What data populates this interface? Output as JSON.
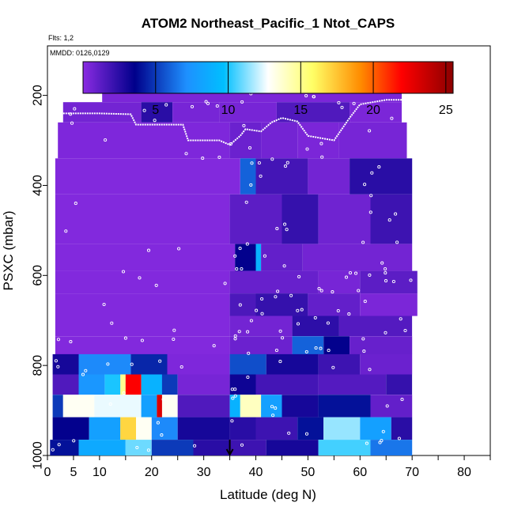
{
  "chart_data": {
    "type": "heatmap",
    "title": "ATOM2 Northeast_Pacific_1 Ntot_CAPS",
    "subtitle_flights": "Flts: 1,2",
    "subtitle_dates": "MMDD: 0126,0129",
    "xlabel": "Latitude (deg N)",
    "ylabel": "PSXC (mbar)",
    "xlim": [
      0,
      85
    ],
    "ylim": [
      1000,
      90
    ],
    "y_reversed": true,
    "grid": false,
    "x_ticks": [
      0,
      5,
      10,
      20,
      30,
      40,
      50,
      60,
      70,
      80
    ],
    "x_tick_labels": [
      "0",
      "5",
      "10",
      "20",
      "30",
      "40",
      "50",
      "60",
      "70",
      "80"
    ],
    "y_ticks": [
      200,
      400,
      600,
      800,
      1000
    ],
    "y_tick_labels": [
      "200",
      "400",
      "600",
      "800",
      "1000"
    ],
    "colorbar": {
      "min": 0,
      "max": 25.5,
      "ticks": [
        5,
        10,
        15,
        20,
        25
      ],
      "tick_labels": [
        "5",
        "10",
        "15",
        "20",
        "25"
      ],
      "colors": [
        "#8a2be2",
        "#00008b",
        "#1e90ff",
        "#00bfff",
        "#ffffff",
        "#ffff66",
        "#ff8c00",
        "#ff0000",
        "#8b0000"
      ]
    },
    "marker_latitude": 35,
    "layers": [
      {
        "p_top": 175,
        "p_bot": 215,
        "segments": [
          [
            10.5,
            68,
            0.4
          ]
        ]
      },
      {
        "p_top": 215,
        "p_bot": 260,
        "segments": [
          [
            3,
            18,
            0.6
          ],
          [
            18,
            24,
            2.5
          ],
          [
            24,
            33,
            0.5
          ],
          [
            33,
            44,
            0.5
          ],
          [
            44,
            58,
            1.5
          ],
          [
            58,
            68,
            0.4
          ]
        ]
      },
      {
        "p_top": 260,
        "p_bot": 340,
        "segments": [
          [
            2,
            35,
            0.3
          ],
          [
            35,
            41,
            0.8
          ],
          [
            41,
            48,
            0.6
          ],
          [
            48,
            56,
            0.4
          ],
          [
            56,
            69,
            0.5
          ]
        ]
      },
      {
        "p_top": 340,
        "p_bot": 420,
        "segments": [
          [
            1.5,
            37,
            0.2
          ],
          [
            37,
            40,
            6
          ],
          [
            40,
            50,
            1.8
          ],
          [
            50,
            58,
            0.6
          ],
          [
            58,
            70,
            2.5
          ]
        ]
      },
      {
        "p_top": 420,
        "p_bot": 530,
        "segments": [
          [
            1.5,
            35,
            0.2
          ],
          [
            35,
            45,
            1.2
          ],
          [
            45,
            52,
            2.2
          ],
          [
            52,
            62,
            0.7
          ],
          [
            62,
            70,
            2.0
          ]
        ]
      },
      {
        "p_top": 530,
        "p_bot": 590,
        "segments": [
          [
            1.5,
            36,
            0.2
          ],
          [
            36,
            40,
            3.5
          ],
          [
            40,
            41,
            9
          ],
          [
            41,
            49,
            1.0
          ],
          [
            49,
            70,
            0.6
          ]
        ]
      },
      {
        "p_top": 590,
        "p_bot": 640,
        "segments": [
          [
            1.5,
            35,
            0.2
          ],
          [
            35,
            52,
            0.9
          ],
          [
            52,
            60,
            0.5
          ],
          [
            60,
            71,
            1.2
          ]
        ]
      },
      {
        "p_top": 640,
        "p_bot": 690,
        "segments": [
          [
            1.5,
            35,
            0.2
          ],
          [
            35,
            40,
            1.6
          ],
          [
            40,
            50,
            2.2
          ],
          [
            50,
            60,
            1.0
          ],
          [
            60,
            71,
            0.4
          ]
        ]
      },
      {
        "p_top": 690,
        "p_bot": 735,
        "segments": [
          [
            1.5,
            35,
            0.2
          ],
          [
            35,
            47,
            0.6
          ],
          [
            47,
            56,
            2.4
          ],
          [
            56,
            70,
            1.4
          ]
        ]
      },
      {
        "p_top": 735,
        "p_bot": 775,
        "segments": [
          [
            1.5,
            35,
            0.2
          ],
          [
            35,
            47,
            0.8
          ],
          [
            47,
            53,
            6
          ],
          [
            53,
            58,
            3.5
          ],
          [
            58,
            70,
            0.9
          ]
        ]
      },
      {
        "p_top": 775,
        "p_bot": 820,
        "segments": [
          [
            1,
            6,
            3.0
          ],
          [
            6,
            16,
            7
          ],
          [
            16,
            23,
            4.5
          ],
          [
            23,
            35,
            0.3
          ],
          [
            35,
            42,
            5.5
          ],
          [
            42,
            52,
            3.0
          ],
          [
            52,
            60,
            2.0
          ],
          [
            60,
            70,
            0.8
          ]
        ]
      },
      {
        "p_top": 820,
        "p_bot": 865,
        "segments": [
          [
            1,
            6,
            1.5
          ],
          [
            6,
            11,
            7.5
          ],
          [
            11,
            14,
            10
          ],
          [
            14,
            15,
            15
          ],
          [
            15,
            18,
            22
          ],
          [
            18,
            22,
            9
          ],
          [
            22,
            25,
            5
          ],
          [
            25,
            35,
            0.5
          ],
          [
            35,
            40,
            3.2
          ],
          [
            40,
            52,
            1.8
          ],
          [
            52,
            65,
            1.4
          ],
          [
            65,
            70,
            2.2
          ]
        ]
      },
      {
        "p_top": 865,
        "p_bot": 915,
        "segments": [
          [
            1,
            3,
            5
          ],
          [
            3,
            9,
            13
          ],
          [
            9,
            18,
            12.5
          ],
          [
            18,
            21,
            8
          ],
          [
            21,
            22,
            23
          ],
          [
            22,
            25,
            13
          ],
          [
            25,
            35,
            1.5
          ],
          [
            35,
            37,
            9
          ],
          [
            37,
            41,
            14
          ],
          [
            41,
            45,
            8
          ],
          [
            45,
            52,
            3
          ],
          [
            52,
            62,
            4
          ],
          [
            62,
            70,
            1.0
          ]
        ]
      },
      {
        "p_top": 915,
        "p_bot": 965,
        "segments": [
          [
            1,
            8,
            3.5
          ],
          [
            8,
            14,
            8
          ],
          [
            14,
            17,
            17
          ],
          [
            17,
            20,
            13
          ],
          [
            20,
            25,
            7
          ],
          [
            25,
            35,
            3
          ],
          [
            35,
            40,
            2.5
          ],
          [
            40,
            48,
            2
          ],
          [
            48,
            53,
            4
          ],
          [
            53,
            60,
            11.5
          ],
          [
            60,
            66,
            8
          ],
          [
            66,
            70,
            2.5
          ]
        ]
      },
      {
        "p_top": 965,
        "p_bot": 1000,
        "segments": [
          [
            0.5,
            6,
            4
          ],
          [
            6,
            15,
            8.5
          ],
          [
            15,
            20,
            11
          ],
          [
            20,
            28,
            5
          ],
          [
            28,
            35,
            2.5
          ],
          [
            35,
            42,
            2
          ],
          [
            42,
            52,
            3
          ],
          [
            52,
            62,
            10.5
          ],
          [
            62,
            70,
            6.5
          ]
        ]
      }
    ]
  }
}
